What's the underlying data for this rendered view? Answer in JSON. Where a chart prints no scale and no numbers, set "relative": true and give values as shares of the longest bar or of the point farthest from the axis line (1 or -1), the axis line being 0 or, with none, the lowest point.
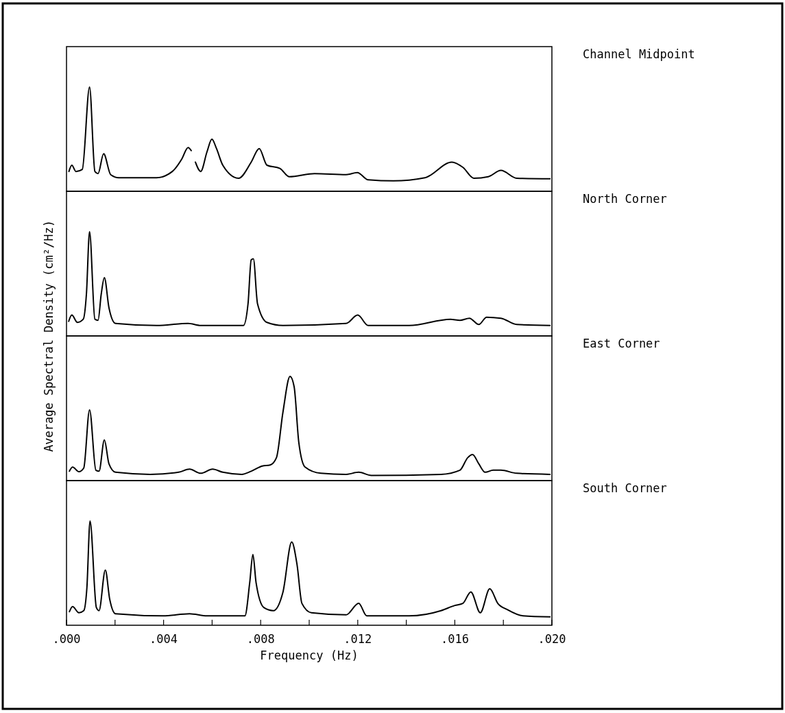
{
  "chart_data": [
    {
      "type": "line",
      "relative": true,
      "ylabel": "Average Spectral Density (cm²/Hz)",
      "xlim": [
        0,
        0.02
      ],
      "series": [
        {
          "name": "Channel Midpoint",
          "color": "#000000",
          "x": [
            0.0001,
            0.00022,
            0.00039,
            0.00065,
            0.00095,
            0.00117,
            0.0013,
            0.00153,
            0.00182,
            0.00215,
            0.00371,
            0.00436,
            0.00475,
            0.00501,
            0.00514,
            0.0052,
            0.00531,
            0.00553,
            0.00579,
            0.00599,
            0.00618,
            0.00644,
            0.00709,
            0.00761,
            0.00794,
            0.00826,
            0.00879,
            0.00918,
            0.01022,
            0.01152,
            0.01198,
            0.01243,
            0.01347,
            0.01477,
            0.01588,
            0.01633,
            0.01679,
            0.01738,
            0.0179,
            0.01855,
            0.01992
          ],
          "values": [
            0.19,
            0.25,
            0.19,
            0.21,
            1,
            0.19,
            0.17,
            0.36,
            0.16,
            0.13,
            0.13,
            0.19,
            0.31,
            0.42,
            0.39,
            null,
            0.28,
            0.19,
            0.38,
            0.5,
            0.41,
            0.25,
            0.125,
            0.28,
            0.41,
            0.25,
            0.22,
            0.14,
            0.17,
            0.16,
            0.18,
            0.11,
            0.1,
            0.13,
            0.28,
            0.23,
            0.125,
            0.14,
            0.2,
            0.125,
            0.12
          ]
        }
      ]
    },
    {
      "type": "line",
      "relative": true,
      "xlim": [
        0,
        0.02
      ],
      "series": [
        {
          "name": "North Corner",
          "color": "#000000",
          "x": [
            9e-05,
            0.00022,
            0.00045,
            0.00069,
            0.00082,
            0.00095,
            0.00117,
            0.0013,
            0.00143,
            0.00156,
            0.00175,
            0.00202,
            0.00371,
            0.00501,
            0.00553,
            0.00729,
            0.00748,
            0.00761,
            0.0077,
            0.00787,
            0.00826,
            0.00892,
            0.01152,
            0.012,
            0.01243,
            0.01412,
            0.01582,
            0.01621,
            0.0166,
            0.01699,
            0.01731,
            0.0179,
            0.01855,
            0.01992
          ],
          "values": [
            0.14,
            0.2,
            0.13,
            0.16,
            0.4,
            1,
            0.16,
            0.15,
            0.4,
            0.56,
            0.27,
            0.12,
            0.1,
            0.12,
            0.1,
            0.1,
            0.31,
            0.73,
            0.74,
            0.31,
            0.13,
            0.1,
            0.12,
            0.2,
            0.1,
            0.1,
            0.16,
            0.15,
            0.17,
            0.11,
            0.18,
            0.17,
            0.11,
            0.1
          ]
        }
      ]
    },
    {
      "type": "line",
      "relative": true,
      "xlim": [
        0,
        0.02
      ],
      "series": [
        {
          "name": "East Corner",
          "color": "#000000",
          "x": [
            0.00012,
            0.00025,
            0.00051,
            0.00071,
            0.00095,
            0.00121,
            0.00134,
            0.00156,
            0.00175,
            0.00202,
            0.00345,
            0.00462,
            0.00507,
            0.00553,
            0.00602,
            0.00644,
            0.00722,
            0.00761,
            0.00807,
            0.00839,
            0.00865,
            0.00892,
            0.00921,
            0.00938,
            0.00957,
            0.00983,
            0.01048,
            0.01152,
            0.01204,
            0.01256,
            0.01543,
            0.01621,
            0.01653,
            0.01673,
            0.01699,
            0.01725,
            0.01758,
            0.0179,
            0.01855,
            0.01992
          ],
          "values": [
            0.09,
            0.13,
            0.085,
            0.12,
            0.68,
            0.1,
            0.09,
            0.39,
            0.16,
            0.08,
            0.06,
            0.08,
            0.11,
            0.07,
            0.11,
            0.08,
            0.06,
            0.09,
            0.14,
            0.15,
            0.22,
            0.66,
            1,
            0.9,
            0.37,
            0.13,
            0.07,
            0.06,
            0.08,
            0.05,
            0.06,
            0.1,
            0.22,
            0.25,
            0.16,
            0.08,
            0.1,
            0.1,
            0.07,
            0.06
          ]
        }
      ]
    },
    {
      "type": "line",
      "relative": true,
      "xlabel": "Frequency (Hz)",
      "xlim": [
        0,
        0.02
      ],
      "xticks": [
        {
          "value": 0,
          "label": ".000"
        },
        {
          "value": 0.002,
          "label": null
        },
        {
          "value": 0.004,
          "label": ".004"
        },
        {
          "value": 0.006,
          "label": null
        },
        {
          "value": 0.008,
          "label": ".008"
        },
        {
          "value": 0.01,
          "label": null
        },
        {
          "value": 0.012,
          "label": ".012"
        },
        {
          "value": 0.014,
          "label": null
        },
        {
          "value": 0.016,
          "label": ".016"
        },
        {
          "value": 0.018,
          "label": null
        },
        {
          "value": 0.02,
          "label": ".020"
        }
      ],
      "series": [
        {
          "name": "South Corner",
          "color": "#000000",
          "x": [
            0.00012,
            0.00025,
            0.00051,
            0.00071,
            0.00084,
            0.00097,
            0.00123,
            0.00134,
            0.0016,
            0.00178,
            0.00202,
            0.00397,
            0.00507,
            0.00579,
            0.00735,
            0.00755,
            0.00768,
            0.00781,
            0.00813,
            0.00852,
            0.00892,
            0.00928,
            0.0095,
            0.0097,
            0.01009,
            0.01152,
            0.01204,
            0.01237,
            0.01412,
            0.01543,
            0.016,
            0.01633,
            0.01666,
            0.01705,
            0.01744,
            0.01777,
            0.01816,
            0.01881,
            0.01992
          ],
          "values": [
            0.13,
            0.18,
            0.12,
            0.14,
            0.36,
            1,
            0.17,
            0.14,
            0.53,
            0.25,
            0.11,
            0.09,
            0.11,
            0.09,
            0.09,
            0.41,
            0.68,
            0.41,
            0.17,
            0.14,
            0.32,
            0.8,
            0.58,
            0.21,
            0.12,
            0.1,
            0.21,
            0.09,
            0.09,
            0.14,
            0.19,
            0.21,
            0.32,
            0.12,
            0.35,
            0.21,
            0.15,
            0.09,
            0.08
          ]
        }
      ]
    }
  ]
}
